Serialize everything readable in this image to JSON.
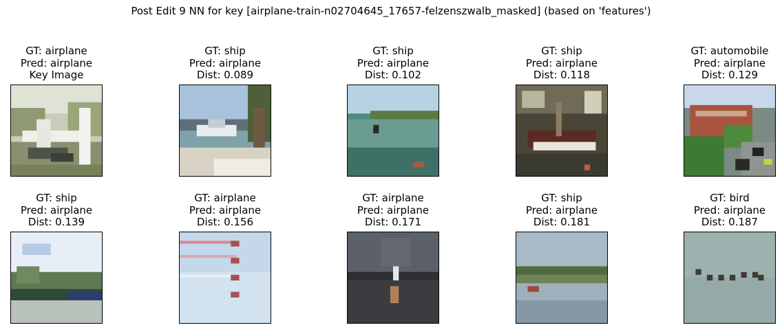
{
  "suptitle": "Post Edit 9 NN for key [airplane-train-n02704645_17657-felzenszwalb_masked] (based on 'features')",
  "cells": [
    {
      "gt": "GT: airplane",
      "pred": "Pred: airplane",
      "extra": "Key Image",
      "image": "key image: light aircraft parked near trees"
    },
    {
      "gt": "GT: ship",
      "pred": "Pred: airplane",
      "extra": "Dist: 0.089",
      "image": "motorboat on sandy beach"
    },
    {
      "gt": "GT: ship",
      "pred": "Pred: airplane",
      "extra": "Dist: 0.102",
      "image": "small boat on calm green water"
    },
    {
      "gt": "GT: ship",
      "pred": "Pred: airplane",
      "extra": "Dist: 0.118",
      "image": "boat in hangar"
    },
    {
      "gt": "GT: automobile",
      "pred": "Pred: airplane",
      "extra": "Dist: 0.129",
      "image": "street with cars and red brick building"
    },
    {
      "gt": "GT: ship",
      "pred": "Pred: airplane",
      "extra": "Dist: 0.139",
      "image": "boats along shoreline with trees"
    },
    {
      "gt": "GT: airplane",
      "pred": "Pred: airplane",
      "extra": "Dist: 0.156",
      "image": "jets trailing smoke in blue sky"
    },
    {
      "gt": "GT: airplane",
      "pred": "Pred: airplane",
      "extra": "Dist: 0.171",
      "image": "dark foggy scene with light"
    },
    {
      "gt": "GT: ship",
      "pred": "Pred: airplane",
      "extra": "Dist: 0.181",
      "image": "boat on lake with distant shore"
    },
    {
      "gt": "GT: bird",
      "pred": "Pred: airplane",
      "extra": "Dist: 0.187",
      "image": "flock of birds on grey-green water"
    }
  ]
}
